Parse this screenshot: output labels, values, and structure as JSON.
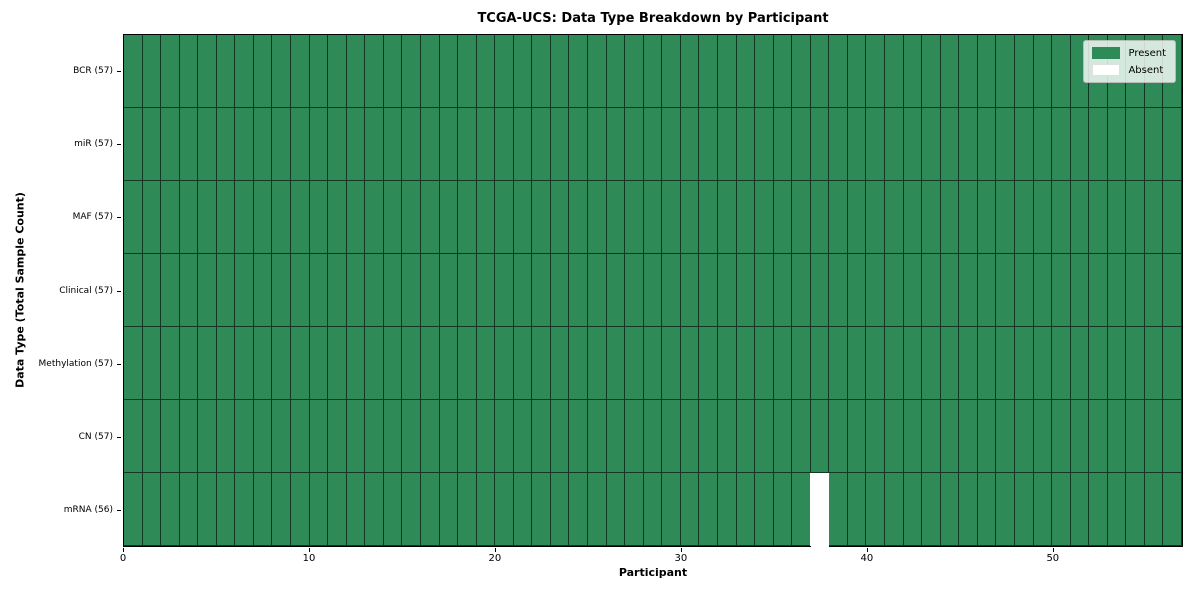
{
  "chart_data": {
    "type": "heatmap",
    "title": "TCGA-UCS: Data Type Breakdown by Participant",
    "xlabel": "Participant",
    "ylabel": "Data Type (Total Sample Count)",
    "n_participants": 57,
    "x_ticks": [
      0,
      10,
      20,
      30,
      40,
      50
    ],
    "x_range": [
      0,
      57
    ],
    "grid": "cell-edges",
    "rows": [
      {
        "label": "BCR (57)",
        "data_type": "BCR",
        "present_count": 57,
        "absent_participants": []
      },
      {
        "label": "miR (57)",
        "data_type": "miR",
        "present_count": 57,
        "absent_participants": []
      },
      {
        "label": "MAF (57)",
        "data_type": "MAF",
        "present_count": 57,
        "absent_participants": []
      },
      {
        "label": "Clinical (57)",
        "data_type": "Clinical",
        "present_count": 57,
        "absent_participants": []
      },
      {
        "label": "Methylation (57)",
        "data_type": "Methylation",
        "present_count": 57,
        "absent_participants": []
      },
      {
        "label": "CN (57)",
        "data_type": "CN",
        "present_count": 57,
        "absent_participants": []
      },
      {
        "label": "mRNA (56)",
        "data_type": "mRNA",
        "present_count": 56,
        "absent_participants": [
          37
        ]
      }
    ],
    "legend": {
      "position": "upper right",
      "entries": [
        {
          "label": "Present",
          "color": "#2e8b57"
        },
        {
          "label": "Absent",
          "color": "#ffffff"
        }
      ]
    },
    "colors": {
      "present": "#2e8b57",
      "absent": "#ffffff",
      "cell_edge": "#000000",
      "background": "#ffffff"
    }
  }
}
